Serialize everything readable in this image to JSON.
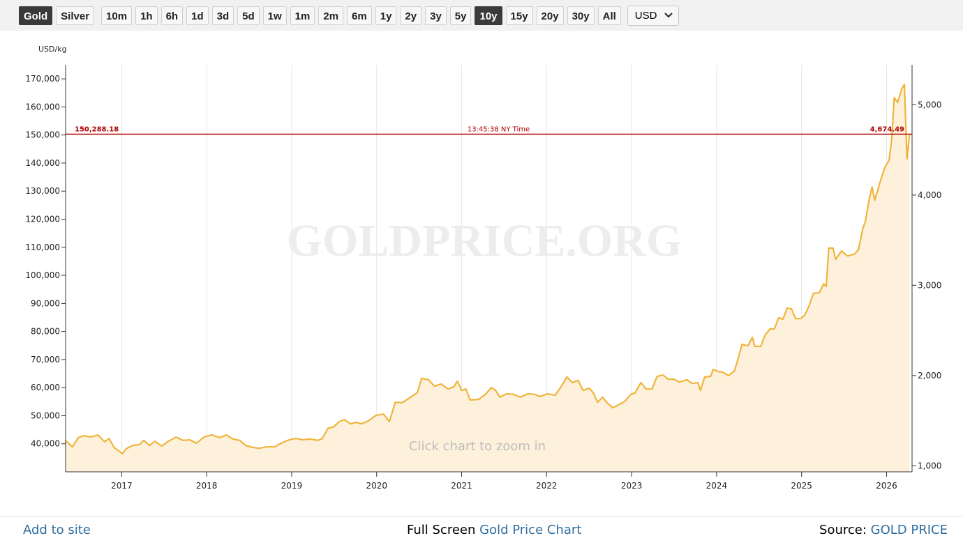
{
  "toolbar": {
    "metals": [
      {
        "label": "Gold",
        "active": true
      },
      {
        "label": "Silver",
        "active": false
      }
    ],
    "ranges": [
      {
        "label": "10m",
        "active": false
      },
      {
        "label": "1h",
        "active": false
      },
      {
        "label": "6h",
        "active": false
      },
      {
        "label": "1d",
        "active": false
      },
      {
        "label": "3d",
        "active": false
      },
      {
        "label": "5d",
        "active": false
      },
      {
        "label": "1w",
        "active": false
      },
      {
        "label": "1m",
        "active": false
      },
      {
        "label": "2m",
        "active": false
      },
      {
        "label": "6m",
        "active": false
      },
      {
        "label": "1y",
        "active": false
      },
      {
        "label": "2y",
        "active": false
      },
      {
        "label": "3y",
        "active": false
      },
      {
        "label": "5y",
        "active": false
      },
      {
        "label": "10y",
        "active": true
      },
      {
        "label": "15y",
        "active": false
      },
      {
        "label": "20y",
        "active": false
      },
      {
        "label": "30y",
        "active": false
      },
      {
        "label": "All",
        "active": false
      }
    ],
    "currency": "USD"
  },
  "chart_data": {
    "type": "area",
    "y_label": "USD/kg",
    "watermark": "GOLDPRICE.ORG",
    "hint": "Click chart to zoom in",
    "color": "#f0b43c",
    "fill_color": "#fdf1dc",
    "grid": true,
    "xlim": [
      2016.34,
      2026.3
    ],
    "xticks": [
      2017,
      2018,
      2019,
      2020,
      2021,
      2022,
      2023,
      2024,
      2025,
      2026
    ],
    "ylim": [
      30000,
      175000
    ],
    "yticks": [
      {
        "value": 40000,
        "label": "40,000"
      },
      {
        "value": 50000,
        "label": "50,000"
      },
      {
        "value": 60000,
        "label": "60,000"
      },
      {
        "value": 70000,
        "label": "70,000"
      },
      {
        "value": 80000,
        "label": "80,000"
      },
      {
        "value": 90000,
        "label": "90,000"
      },
      {
        "value": 100000,
        "label": "100,000"
      },
      {
        "value": 110000,
        "label": "110,000"
      },
      {
        "value": 120000,
        "label": "120,000"
      },
      {
        "value": 130000,
        "label": "130,000"
      },
      {
        "value": 140000,
        "label": "140,000"
      },
      {
        "value": 150000,
        "label": "150,000"
      },
      {
        "value": 160000,
        "label": "160,000"
      },
      {
        "value": 170000,
        "label": "170,000"
      }
    ],
    "y2lim": [
      933.1,
      5443.1
    ],
    "y2ticks": [
      {
        "value": 1000,
        "label": "1,000"
      },
      {
        "value": 2000,
        "label": "2,000"
      },
      {
        "value": 3000,
        "label": "3,000"
      },
      {
        "value": 4000,
        "label": "4,000"
      },
      {
        "value": 5000,
        "label": "5,000"
      }
    ],
    "reference_line": {
      "value": 150288.18,
      "label": "150,288.18",
      "time": "13:45:38 NY Time",
      "y2_value": {
        "value": 4674.49,
        "label": "4,674.49"
      },
      "color": "#b00000"
    },
    "x": [
      2016.34,
      2016.42,
      2016.49,
      2016.55,
      2016.64,
      2016.72,
      2016.8,
      2016.85,
      2016.91,
      2017.01,
      2017.05,
      2017.13,
      2017.21,
      2017.26,
      2017.33,
      2017.39,
      2017.47,
      2017.54,
      2017.64,
      2017.72,
      2017.8,
      2017.88,
      2017.97,
      2018.06,
      2018.15,
      2018.23,
      2018.31,
      2018.39,
      2018.46,
      2018.54,
      2018.62,
      2018.7,
      2018.8,
      2018.89,
      2018.97,
      2019.05,
      2019.13,
      2019.21,
      2019.31,
      2019.36,
      2019.43,
      2019.49,
      2019.56,
      2019.62,
      2019.69,
      2019.76,
      2019.82,
      2019.9,
      2019.99,
      2020.08,
      2020.15,
      2020.22,
      2020.3,
      2020.36,
      2020.45,
      2020.48,
      2020.53,
      2020.61,
      2020.68,
      2020.76,
      2020.84,
      2020.91,
      2020.95,
      2021.0,
      2021.05,
      2021.1,
      2021.2,
      2021.28,
      2021.35,
      2021.4,
      2021.45,
      2021.53,
      2021.61,
      2021.69,
      2021.78,
      2021.86,
      2021.92,
      2022.01,
      2022.1,
      2022.17,
      2022.24,
      2022.3,
      2022.37,
      2022.43,
      2022.5,
      2022.55,
      2022.6,
      2022.66,
      2022.71,
      2022.78,
      2022.84,
      2022.92,
      2022.99,
      2023.04,
      2023.11,
      2023.17,
      2023.24,
      2023.3,
      2023.37,
      2023.43,
      2023.5,
      2023.56,
      2023.65,
      2023.71,
      2023.78,
      2023.81,
      2023.86,
      2023.93,
      2023.96,
      2024.02,
      2024.07,
      2024.14,
      2024.21,
      2024.25,
      2024.3,
      2024.37,
      2024.42,
      2024.45,
      2024.52,
      2024.57,
      2024.63,
      2024.68,
      2024.73,
      2024.78,
      2024.83,
      2024.88,
      2024.93,
      2024.99,
      2025.04,
      2025.09,
      2025.14,
      2025.21,
      2025.26,
      2025.29,
      2025.32,
      2025.37,
      2025.4,
      2025.47,
      2025.54,
      2025.62,
      2025.67,
      2025.72,
      2025.75,
      2025.8,
      2025.83,
      2025.86,
      2025.93,
      2025.98,
      2026.03,
      2026.06,
      2026.09,
      2026.13,
      2026.18,
      2026.21,
      2026.24,
      2026.27
    ],
    "values": [
      41170,
      38900,
      42200,
      42900,
      42400,
      43150,
      40700,
      41900,
      38700,
      36450,
      38200,
      39400,
      39700,
      41200,
      39400,
      40900,
      39200,
      40700,
      42400,
      41200,
      41400,
      40200,
      42400,
      43150,
      42200,
      43150,
      41700,
      41200,
      39400,
      38700,
      38400,
      38900,
      38900,
      40400,
      41400,
      41900,
      41400,
      41700,
      41200,
      41900,
      45600,
      45900,
      47900,
      48600,
      47100,
      47600,
      47100,
      48100,
      50100,
      50600,
      47900,
      54800,
      54600,
      55800,
      57600,
      58300,
      63300,
      62800,
      60500,
      61300,
      59500,
      60300,
      62300,
      59000,
      59500,
      55600,
      55800,
      57600,
      60000,
      59000,
      56600,
      57800,
      57600,
      56600,
      57800,
      57600,
      56800,
      57800,
      57300,
      60300,
      63800,
      61800,
      62600,
      59000,
      59800,
      58100,
      54800,
      56600,
      54600,
      52800,
      53800,
      55100,
      57600,
      58100,
      61800,
      59500,
      59500,
      64000,
      64500,
      63000,
      63000,
      62000,
      62800,
      61500,
      61800,
      59000,
      63800,
      64000,
      66500,
      65700,
      65500,
      64300,
      66000,
      70000,
      75400,
      74900,
      77900,
      74700,
      74700,
      78700,
      80900,
      80900,
      84900,
      84400,
      88300,
      88100,
      84600,
      84600,
      85900,
      89300,
      93600,
      93800,
      97000,
      96000,
      109700,
      109700,
      105700,
      108700,
      106900,
      107500,
      109200,
      116600,
      119100,
      127800,
      131500,
      126800,
      133800,
      138500,
      141000,
      148400,
      163300,
      161600,
      166500,
      168000,
      141500,
      150400
    ]
  },
  "footer": {
    "add": "Add to site",
    "full_screen": "Full Screen",
    "chart_link": "Gold Price Chart",
    "source": "Source:",
    "source_link": "GOLD PRICE"
  }
}
